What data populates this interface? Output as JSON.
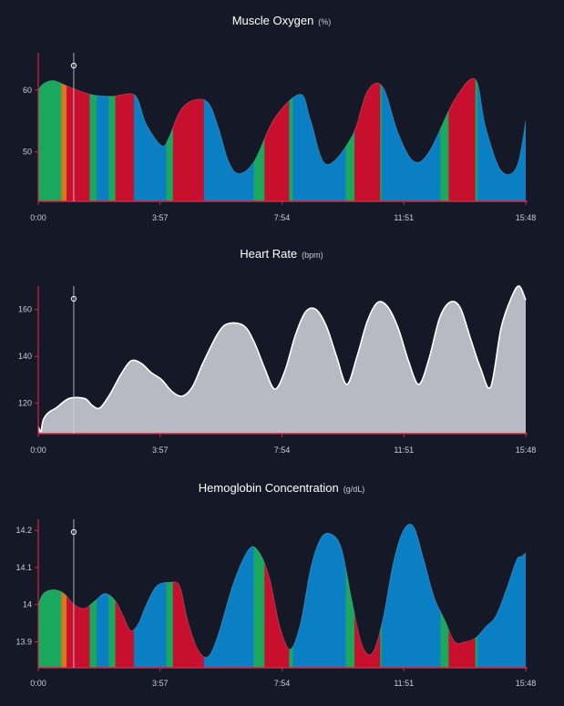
{
  "colors": {
    "background": "#141827",
    "axis": "#d5263f",
    "red": "#c8102e",
    "blue": "#0a7fc4",
    "green": "#1aa85e",
    "orange": "#d9761e",
    "hr_fill": "#b7bac2",
    "hr_line": "#ffffff",
    "cursor": "#cfd3dc"
  },
  "cursor_time": "1:09",
  "chart_data": [
    {
      "type": "area",
      "id": "muscle-oxygen",
      "title": "Muscle Oxygen",
      "unit": "(%)",
      "x_ticks": [
        "0:00",
        "3:57",
        "7:54",
        "11:51",
        "15:48"
      ],
      "x_range_seconds": [
        0,
        948
      ],
      "y_ticks": [
        50,
        60
      ],
      "ylim": [
        42,
        66
      ],
      "series": {
        "t": [
          0,
          10,
          30,
          60,
          100,
          130,
          150,
          160,
          190,
          210,
          240,
          255,
          275,
          300,
          330,
          350,
          370,
          390,
          420,
          460,
          510,
          530,
          560,
          610,
          640,
          670,
          700,
          730,
          760,
          810,
          850,
          870,
          900,
          930,
          948
        ],
        "v": [
          60.0,
          61.0,
          61.5,
          60.5,
          59.3,
          59.0,
          59.0,
          59.2,
          59.0,
          54.5,
          51.0,
          52.5,
          56.5,
          58.3,
          58.0,
          54.0,
          48.5,
          46.5,
          48.5,
          55.5,
          59.3,
          55.0,
          48.0,
          52.5,
          59.8,
          60.5,
          53.0,
          48.5,
          50.0,
          58.5,
          61.7,
          54.0,
          47.0,
          47.5,
          55.0
        ]
      },
      "segments": [
        {
          "from": 0,
          "to": 45,
          "zone": "green"
        },
        {
          "from": 45,
          "to": 55,
          "zone": "orange"
        },
        {
          "from": 55,
          "to": 100,
          "zone": "red"
        },
        {
          "from": 100,
          "to": 114,
          "zone": "green"
        },
        {
          "from": 114,
          "to": 137,
          "zone": "blue"
        },
        {
          "from": 137,
          "to": 150,
          "zone": "green"
        },
        {
          "from": 150,
          "to": 186,
          "zone": "red"
        },
        {
          "from": 186,
          "to": 249,
          "zone": "blue"
        },
        {
          "from": 249,
          "to": 262,
          "zone": "green"
        },
        {
          "from": 262,
          "to": 322,
          "zone": "red"
        },
        {
          "from": 322,
          "to": 419,
          "zone": "blue"
        },
        {
          "from": 419,
          "to": 440,
          "zone": "green"
        },
        {
          "from": 440,
          "to": 488,
          "zone": "red"
        },
        {
          "from": 488,
          "to": 495,
          "zone": "green"
        },
        {
          "from": 495,
          "to": 598,
          "zone": "blue"
        },
        {
          "from": 598,
          "to": 615,
          "zone": "green"
        },
        {
          "from": 615,
          "to": 665,
          "zone": "red"
        },
        {
          "from": 665,
          "to": 668,
          "zone": "green"
        },
        {
          "from": 668,
          "to": 782,
          "zone": "blue"
        },
        {
          "from": 782,
          "to": 798,
          "zone": "green"
        },
        {
          "from": 798,
          "to": 850,
          "zone": "red"
        },
        {
          "from": 850,
          "to": 854,
          "zone": "green"
        },
        {
          "from": 854,
          "to": 948,
          "zone": "blue"
        }
      ]
    },
    {
      "type": "area",
      "id": "heart-rate",
      "title": "Heart Rate",
      "unit": "(bpm)",
      "x_ticks": [
        "0:00",
        "3:57",
        "7:54",
        "11:51",
        "15:48"
      ],
      "x_range_seconds": [
        0,
        948
      ],
      "y_ticks": [
        120,
        140,
        160
      ],
      "ylim": [
        107,
        170
      ],
      "series": {
        "t": [
          0,
          5,
          10,
          20,
          35,
          60,
          90,
          105,
          120,
          140,
          160,
          180,
          200,
          220,
          240,
          260,
          280,
          300,
          320,
          350,
          370,
          400,
          420,
          440,
          460,
          480,
          500,
          520,
          540,
          560,
          580,
          600,
          620,
          640,
          660,
          680,
          700,
          720,
          740,
          760,
          780,
          800,
          820,
          840,
          860,
          880,
          900,
          920,
          935,
          948
        ],
        "v": [
          110,
          108,
          113,
          116,
          118,
          122,
          122,
          119,
          118,
          124,
          132,
          138,
          137,
          133,
          130,
          125,
          123,
          127,
          137,
          150,
          154,
          153,
          146,
          135,
          126,
          134,
          149,
          159,
          160,
          153,
          140,
          128,
          140,
          155,
          163,
          161,
          152,
          138,
          128,
          139,
          156,
          163,
          161,
          148,
          135,
          127,
          152,
          165,
          170,
          164
        ]
      }
    },
    {
      "type": "area",
      "id": "hemoglobin",
      "title": "Hemoglobin Concentration",
      "unit": "(g/dL)",
      "x_ticks": [
        "0:00",
        "3:57",
        "7:54",
        "11:51",
        "15:48"
      ],
      "x_range_seconds": [
        0,
        948
      ],
      "y_ticks": [
        13.9,
        14.0,
        14.1,
        14.2
      ],
      "ylim": [
        13.83,
        14.23
      ],
      "series": {
        "t": [
          0,
          10,
          30,
          50,
          70,
          90,
          110,
          130,
          150,
          165,
          180,
          195,
          210,
          230,
          255,
          275,
          290,
          310,
          330,
          350,
          380,
          410,
          430,
          450,
          470,
          490,
          510,
          530,
          550,
          570,
          590,
          610,
          630,
          650,
          670,
          690,
          710,
          730,
          750,
          770,
          790,
          810,
          830,
          850,
          870,
          890,
          910,
          930,
          940,
          948
        ],
        "v": [
          14.0,
          14.03,
          14.04,
          14.03,
          14.0,
          13.99,
          14.01,
          14.03,
          14.01,
          13.97,
          13.93,
          13.95,
          14.0,
          14.05,
          14.06,
          14.05,
          13.96,
          13.88,
          13.86,
          13.92,
          14.06,
          14.15,
          14.14,
          14.07,
          13.94,
          13.88,
          13.95,
          14.1,
          14.18,
          14.19,
          14.15,
          14.01,
          13.89,
          13.87,
          13.96,
          14.11,
          14.2,
          14.21,
          14.12,
          14.02,
          13.96,
          13.9,
          13.9,
          13.91,
          13.94,
          13.97,
          14.04,
          14.12,
          14.13,
          14.14
        ]
      },
      "segments": [
        {
          "from": 0,
          "to": 45,
          "zone": "green"
        },
        {
          "from": 45,
          "to": 55,
          "zone": "orange"
        },
        {
          "from": 55,
          "to": 100,
          "zone": "red"
        },
        {
          "from": 100,
          "to": 114,
          "zone": "green"
        },
        {
          "from": 114,
          "to": 137,
          "zone": "blue"
        },
        {
          "from": 137,
          "to": 150,
          "zone": "green"
        },
        {
          "from": 150,
          "to": 186,
          "zone": "red"
        },
        {
          "from": 186,
          "to": 249,
          "zone": "blue"
        },
        {
          "from": 249,
          "to": 262,
          "zone": "green"
        },
        {
          "from": 262,
          "to": 322,
          "zone": "red"
        },
        {
          "from": 322,
          "to": 419,
          "zone": "blue"
        },
        {
          "from": 419,
          "to": 440,
          "zone": "green"
        },
        {
          "from": 440,
          "to": 488,
          "zone": "red"
        },
        {
          "from": 488,
          "to": 495,
          "zone": "green"
        },
        {
          "from": 495,
          "to": 598,
          "zone": "blue"
        },
        {
          "from": 598,
          "to": 615,
          "zone": "green"
        },
        {
          "from": 615,
          "to": 665,
          "zone": "red"
        },
        {
          "from": 665,
          "to": 668,
          "zone": "green"
        },
        {
          "from": 668,
          "to": 782,
          "zone": "blue"
        },
        {
          "from": 782,
          "to": 798,
          "zone": "green"
        },
        {
          "from": 798,
          "to": 850,
          "zone": "red"
        },
        {
          "from": 850,
          "to": 854,
          "zone": "green"
        },
        {
          "from": 854,
          "to": 948,
          "zone": "blue"
        }
      ]
    }
  ]
}
